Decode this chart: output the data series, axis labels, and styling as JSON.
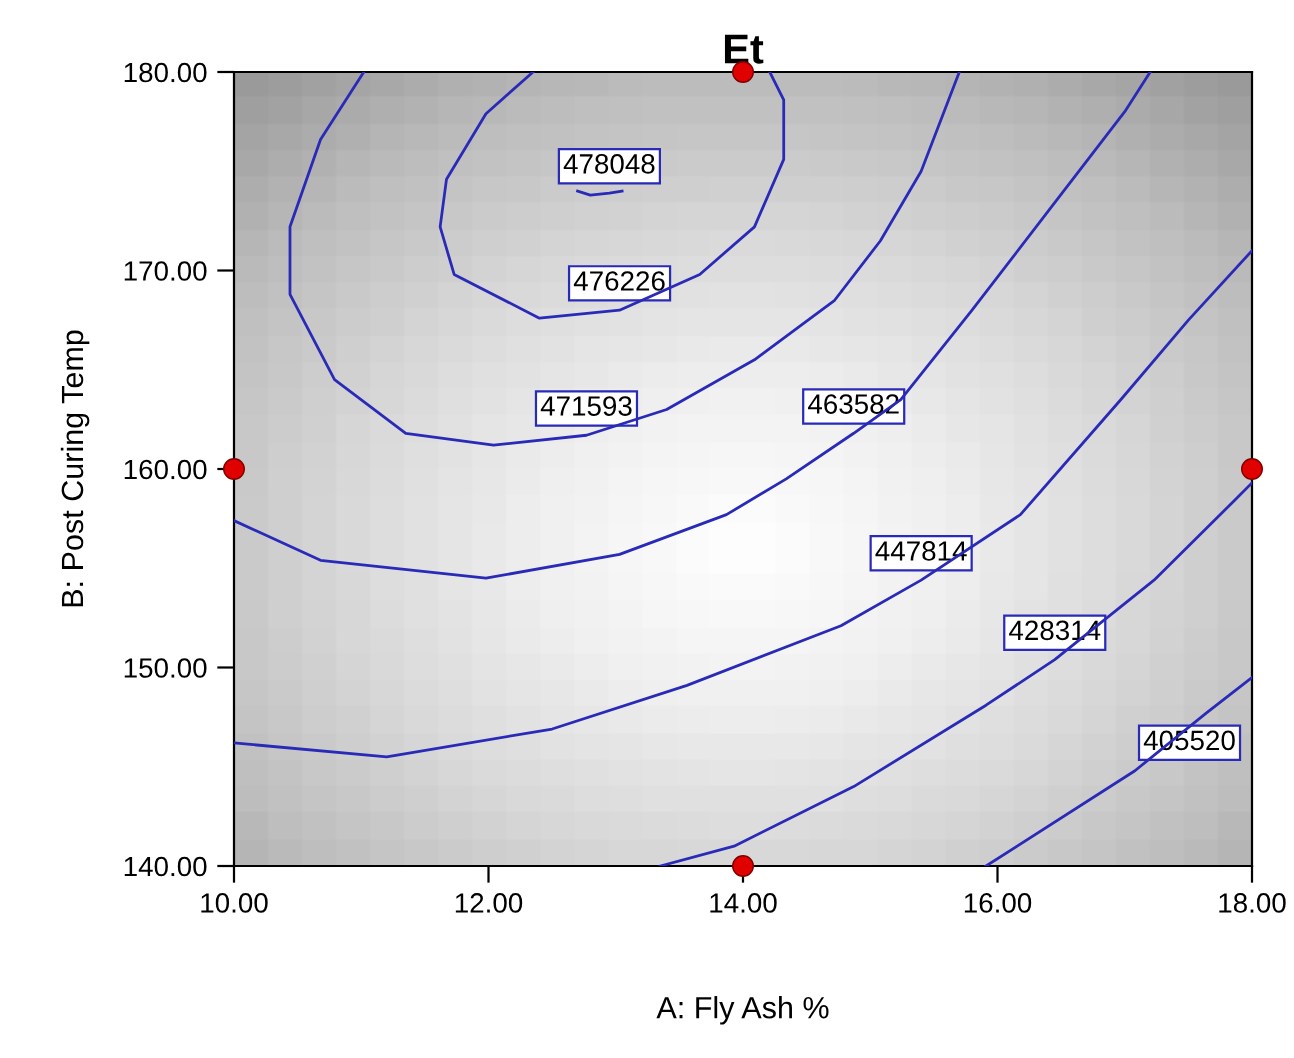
{
  "chart_data": {
    "type": "line",
    "title": "Et",
    "xlabel": "A: Fly Ash %",
    "ylabel": "B: Post Curing Temp",
    "xlim": [
      10,
      18
    ],
    "ylim": [
      140,
      180
    ],
    "xticks": [
      {
        "value": 10,
        "label": "10.00"
      },
      {
        "value": 12,
        "label": "12.00"
      },
      {
        "value": 14,
        "label": "14.00"
      },
      {
        "value": 16,
        "label": "16.00"
      },
      {
        "value": 18,
        "label": "18.00"
      }
    ],
    "yticks": [
      {
        "value": 140,
        "label": "140.00"
      },
      {
        "value": 150,
        "label": "150.00"
      },
      {
        "value": 160,
        "label": "160.00"
      },
      {
        "value": 170,
        "label": "170.00"
      },
      {
        "value": 180,
        "label": "180.00"
      }
    ],
    "grid": false,
    "legend": false,
    "marker": "none",
    "line_style": "solid",
    "series": [
      {
        "name": "478048",
        "color": "#2a2ab8",
        "x": [
          12.7,
          12.8,
          12.95,
          13.05
        ],
        "values": [
          174.0,
          173.8,
          173.9,
          174.0
        ]
      },
      {
        "name": "476226",
        "color": "#2a2ab8",
        "x": [
          12.35,
          11.98,
          11.67,
          11.62,
          11.73,
          12.4,
          13.03,
          13.66,
          14.09,
          14.32,
          14.32,
          14.21
        ],
        "values": [
          180,
          177.9,
          174.6,
          172.2,
          169.8,
          167.6,
          168.0,
          169.8,
          172.2,
          175.6,
          178.6,
          180
        ]
      },
      {
        "name": "471593",
        "color": "#2a2ab8",
        "x": [
          11.02,
          10.68,
          10.44,
          10.44,
          10.79,
          11.35,
          12.04,
          12.77,
          13.4,
          14.09,
          14.72,
          15.08,
          15.4,
          15.7
        ],
        "values": [
          180,
          176.6,
          172.2,
          168.8,
          164.5,
          161.8,
          161.2,
          161.7,
          163.0,
          165.5,
          168.5,
          171.5,
          175,
          180
        ]
      },
      {
        "name": "463582",
        "color": "#2a2ab8",
        "x": [
          10,
          10.68,
          11.98,
          13.03,
          13.87,
          14.34,
          14.87,
          15.24,
          15.8,
          16.4,
          17.0,
          17.2
        ],
        "values": [
          157.4,
          155.4,
          154.5,
          155.7,
          157.7,
          159.5,
          161.8,
          163.5,
          168,
          173,
          178,
          180
        ]
      },
      {
        "name": "447814",
        "color": "#2a2ab8",
        "x": [
          10,
          11.2,
          12.5,
          13.56,
          14.77,
          15.4,
          16.18,
          16.97,
          17.5,
          18
        ],
        "values": [
          146.2,
          145.5,
          146.9,
          149.1,
          152.1,
          154.4,
          157.7,
          163.5,
          167.5,
          171
        ]
      },
      {
        "name": "428314",
        "color": "#2a2ab8",
        "x": [
          13.35,
          13.93,
          14.87,
          15.91,
          16.45,
          17.23,
          17.86,
          18
        ],
        "values": [
          140,
          141.0,
          144.0,
          148.1,
          150.4,
          154.4,
          158.4,
          159.3
        ]
      },
      {
        "name": "405520",
        "color": "#2a2ab8",
        "x": [
          15.91,
          17.08,
          17.64,
          17.88,
          18
        ],
        "values": [
          140,
          144.8,
          147.7,
          148.9,
          149.5
        ]
      },
      {
        "type": "scatter",
        "color": "#e00000",
        "marker": "circle",
        "x": [
          14,
          10,
          18,
          14
        ],
        "values": [
          180,
          160,
          160,
          140
        ]
      }
    ]
  }
}
